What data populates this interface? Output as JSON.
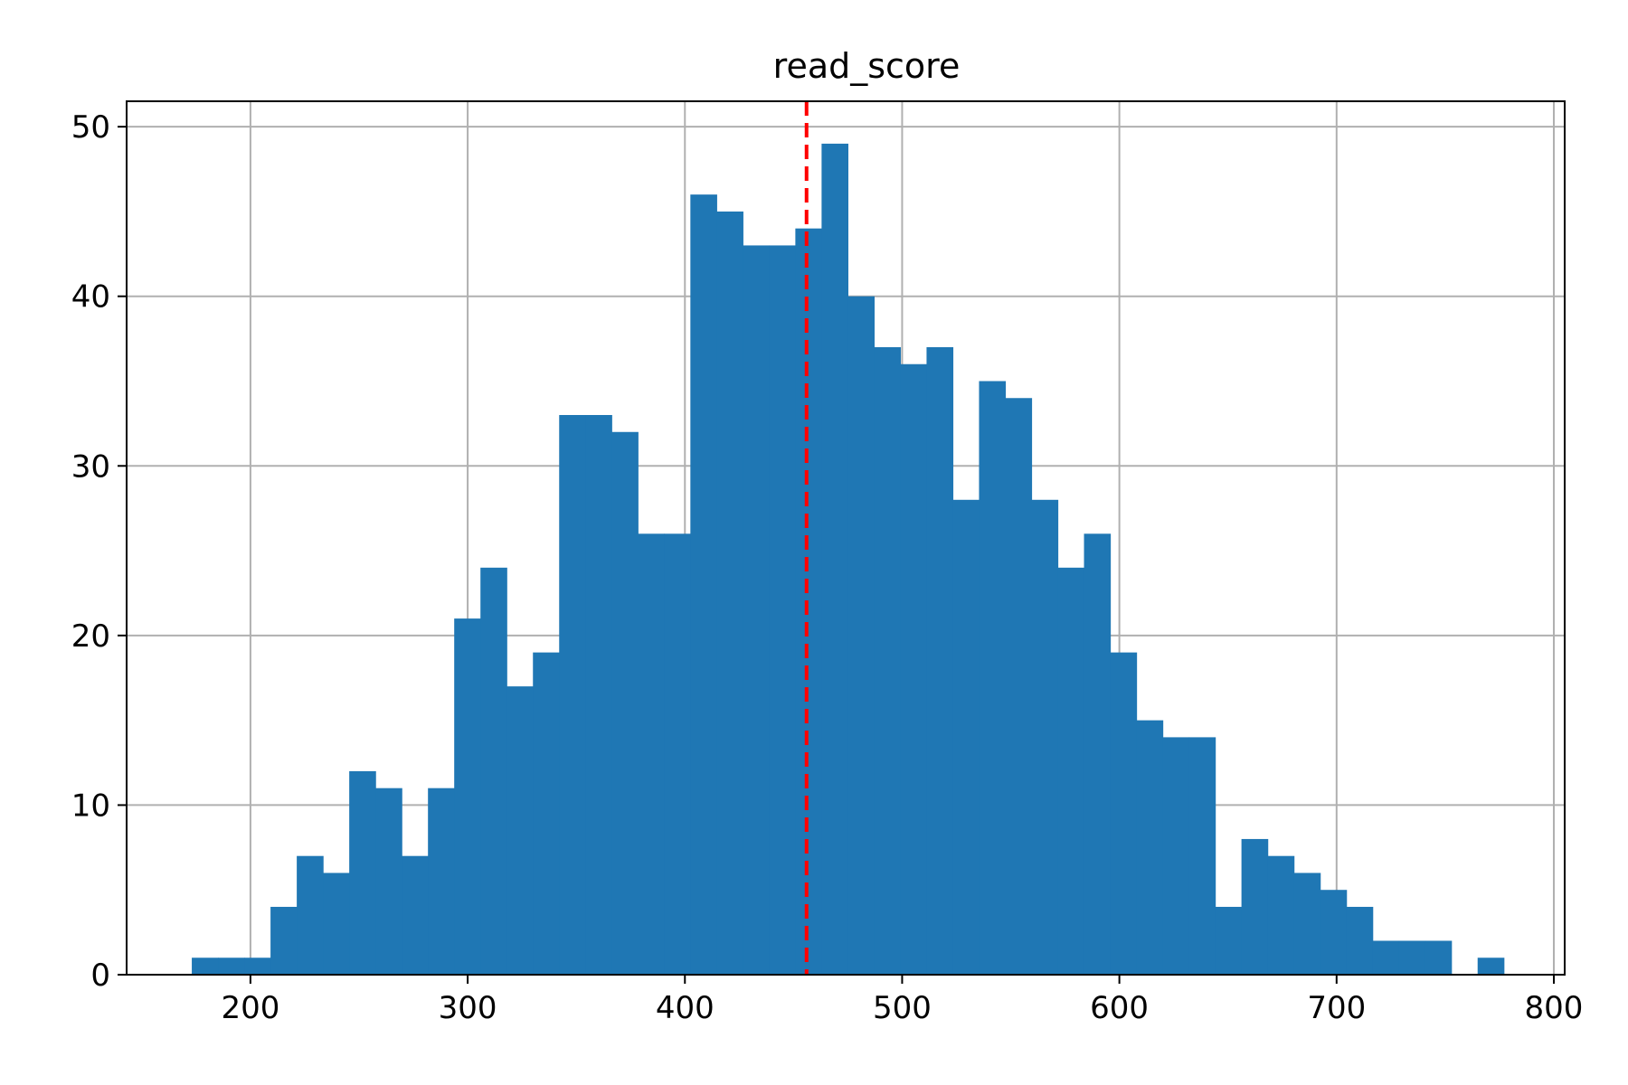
{
  "chart_data": {
    "type": "bar",
    "title": "read_score",
    "xlabel": "",
    "ylabel": "",
    "xlim": [
      143,
      805
    ],
    "ylim": [
      0,
      51.5
    ],
    "x_ticks": [
      "200",
      "300",
      "400",
      "500",
      "600",
      "700",
      "800"
    ],
    "y_ticks": [
      "0",
      "10",
      "20",
      "30",
      "40",
      "50"
    ],
    "grid": true,
    "legend": "none",
    "bin_start": 173,
    "bin_width": 12.08,
    "counts": [
      1,
      1,
      1,
      4,
      7,
      6,
      12,
      11,
      7,
      11,
      21,
      24,
      17,
      19,
      33,
      33,
      32,
      26,
      26,
      46,
      45,
      43,
      43,
      44,
      49,
      40,
      37,
      36,
      37,
      28,
      35,
      34,
      28,
      24,
      26,
      19,
      15,
      14,
      14,
      4,
      8,
      7,
      6,
      5,
      4,
      2,
      2,
      2,
      0,
      1
    ],
    "mean_line": {
      "x": 456,
      "style": "dashed",
      "color": "#ff0000"
    },
    "bar_color": "#1f77b4"
  }
}
